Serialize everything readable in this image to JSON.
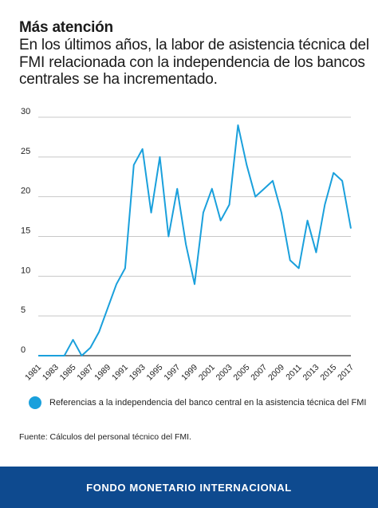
{
  "title": "Más atención",
  "subtitle": "En los últimos años, la labor de asistencia técnica del FMI relacionada con la independencia de los bancos centrales se ha incrementado.",
  "legend_label": "Referencias a la independencia del banco central en la asistencia técnica del FMI",
  "source": "Fuente: Cálculos del personal técnico del FMI.",
  "footer": "FONDO MONETARIO INTERNACIONAL",
  "chart_data": {
    "type": "line",
    "title": "",
    "xlabel": "",
    "ylabel": "",
    "ylim": [
      0,
      30
    ],
    "yticks": [
      0,
      5,
      10,
      15,
      20,
      25,
      30
    ],
    "xticks": [
      "1981",
      "1983",
      "1985",
      "1987",
      "1989",
      "1991",
      "1993",
      "1995",
      "1997",
      "1999",
      "2001",
      "2003",
      "2005",
      "2007",
      "2009",
      "2011",
      "2013",
      "2015",
      "2017"
    ],
    "grid": true,
    "legend": "bottom",
    "line_color": "#1aa0dc",
    "x": [
      1981,
      1982,
      1983,
      1984,
      1985,
      1986,
      1987,
      1988,
      1989,
      1990,
      1991,
      1992,
      1993,
      1994,
      1995,
      1996,
      1997,
      1998,
      1999,
      2000,
      2001,
      2002,
      2003,
      2004,
      2005,
      2006,
      2007,
      2008,
      2009,
      2010,
      2011,
      2012,
      2013,
      2014,
      2015,
      2016,
      2017
    ],
    "series": [
      {
        "name": "Referencias a la independencia del banco central en la asistencia técnica del FMI",
        "values": [
          0,
          0,
          0,
          0,
          2,
          0,
          1,
          3,
          6,
          9,
          11,
          24,
          26,
          18,
          25,
          15,
          21,
          14,
          9,
          18,
          21,
          17,
          19,
          29,
          24,
          20,
          21,
          22,
          18,
          12,
          11,
          17,
          13,
          19,
          23,
          22,
          16
        ]
      }
    ]
  }
}
